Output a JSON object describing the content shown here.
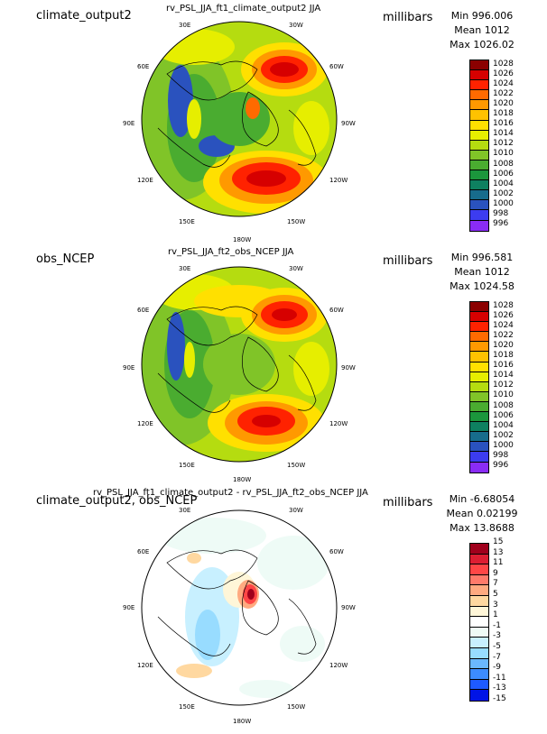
{
  "panels": [
    {
      "case_name": "climate_output2",
      "title": "rv_PSL_JJA_ft1_climate_output2 JJA",
      "units": "millibars",
      "stats": {
        "min": "Min 996.006",
        "mean": "Mean 1012",
        "max": "Max 1026.02"
      },
      "colorbar": {
        "labels": [
          "1028",
          "1026",
          "1024",
          "1022",
          "1020",
          "1018",
          "1016",
          "1014",
          "1012",
          "1010",
          "1008",
          "1006",
          "1004",
          "1002",
          "1000",
          "998",
          "996"
        ],
        "colors": [
          "#8b0000",
          "#d60000",
          "#ff2200",
          "#ff6a00",
          "#ff9900",
          "#ffc200",
          "#ffe000",
          "#e6ee00",
          "#b5dc10",
          "#80c428",
          "#4aac30",
          "#1b963c",
          "#0e8060",
          "#176c8c",
          "#2a52be",
          "#3c3cf0",
          "#8a2cf5"
        ]
      },
      "lon_labels": [
        "30E",
        "30W",
        "60E",
        "60W",
        "90E",
        "90W",
        "120E",
        "120W",
        "150E",
        "150W",
        "180W"
      ]
    },
    {
      "case_name": "obs_NCEP",
      "title": "rv_PSL_JJA_ft2_obs_NCEP JJA",
      "units": "millibars",
      "stats": {
        "min": "Min 996.581",
        "mean": "Mean 1012",
        "max": "Max 1024.58"
      },
      "colorbar": {
        "labels": [
          "1028",
          "1026",
          "1024",
          "1022",
          "1020",
          "1018",
          "1016",
          "1014",
          "1012",
          "1010",
          "1008",
          "1006",
          "1004",
          "1002",
          "1000",
          "998",
          "996"
        ],
        "colors": [
          "#8b0000",
          "#d60000",
          "#ff2200",
          "#ff6a00",
          "#ff9900",
          "#ffc200",
          "#ffe000",
          "#e6ee00",
          "#b5dc10",
          "#80c428",
          "#4aac30",
          "#1b963c",
          "#0e8060",
          "#176c8c",
          "#2a52be",
          "#3c3cf0",
          "#8a2cf5"
        ]
      },
      "lon_labels": [
        "30E",
        "30W",
        "60E",
        "60W",
        "90E",
        "90W",
        "120E",
        "120W",
        "150E",
        "150W",
        "180W"
      ]
    },
    {
      "case_name": "climate_output2, obs_NCEP",
      "title": "rv_PSL_JJA_ft1_climate_output2 - rv_PSL_JJA_ft2_obs_NCEP JJA",
      "units": "millibars",
      "stats": {
        "min": "Min -6.68054",
        "mean": "Mean 0.02199",
        "max": "Max 13.8688"
      },
      "colorbar": {
        "labels": [
          "15",
          "13",
          "11",
          "9",
          "7",
          "5",
          "3",
          "1",
          "-1",
          "-3",
          "-5",
          "-7",
          "-9",
          "-11",
          "-13",
          "-15"
        ],
        "colors": [
          "#a0001c",
          "#dc1e32",
          "#ff4646",
          "#ff7a6a",
          "#ffaa80",
          "#ffd8a0",
          "#fff6d8",
          "#ffffff",
          "#eefbf6",
          "#c8f0ff",
          "#98dcff",
          "#6ab8ff",
          "#3c8cff",
          "#1e5aff",
          "#0014e6"
        ]
      },
      "lon_labels": [
        "30E",
        "30W",
        "60E",
        "60W",
        "90E",
        "90W",
        "120E",
        "120W",
        "150E",
        "150W",
        "180W"
      ]
    }
  ]
}
